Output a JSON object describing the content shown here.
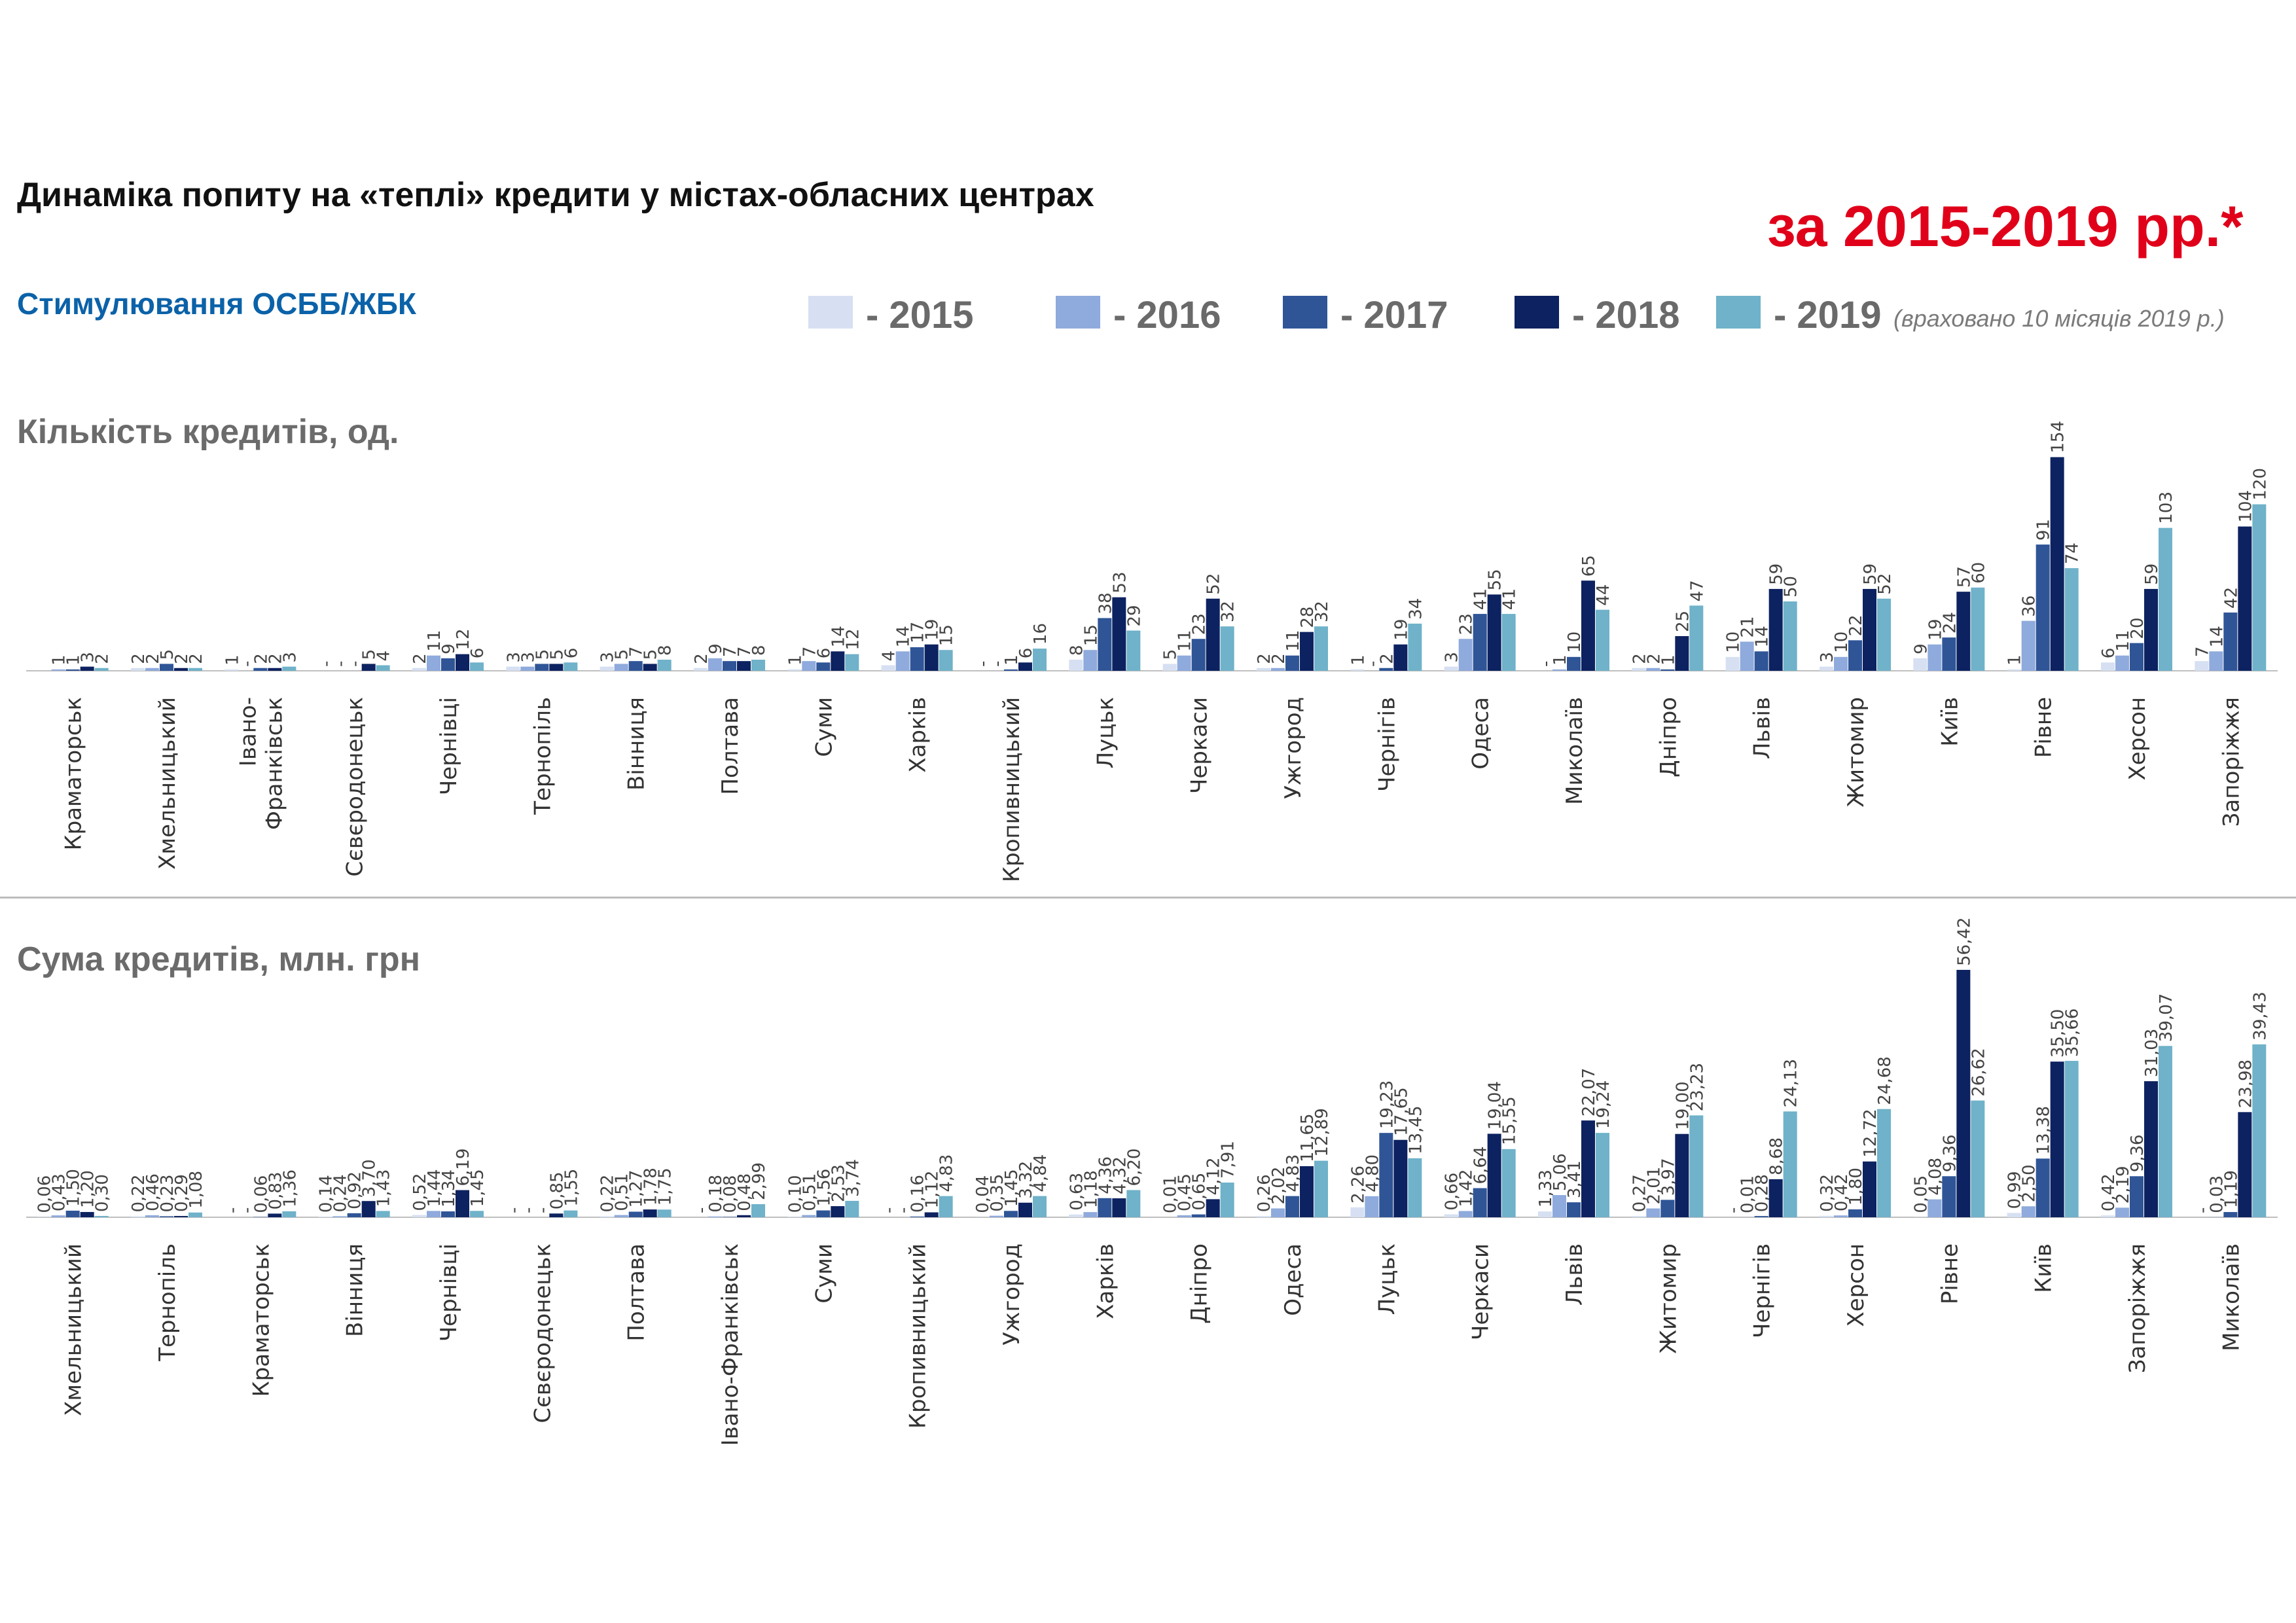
{
  "header": {
    "title": "Динаміка попиту на «теплі» кредити у містах-обласних центрах",
    "period": "за 2015-2019 рр.*",
    "subtitle": "Стимулювання ОСББ/ЖБК"
  },
  "legend": {
    "items": [
      {
        "label": "- 2015",
        "color": "#d6e0f2"
      },
      {
        "label": "- 2016",
        "color": "#8faadc"
      },
      {
        "label": "- 2017",
        "color": "#2f5597"
      },
      {
        "label": "- 2018",
        "color": "#0d2260"
      },
      {
        "label": "- 2019",
        "color": "#6fb2c9"
      }
    ],
    "note": "(враховано 10 місяців 2019 р.)"
  },
  "chart_data": [
    {
      "type": "bar",
      "title": "Кількість кредитів, од.",
      "categories": [
        "Краматорськ",
        "Хмельницький",
        "Івано-\nФранківськ",
        "Сєвєродонецьк",
        "Чернівці",
        "Тернопіль",
        "Вінниця",
        "Полтава",
        "Суми",
        "Харків",
        "Кропивницький",
        "Луцьк",
        "Черкаси",
        "Ужгород",
        "Чернігів",
        "Одеса",
        "Миколаїв",
        "Дніпро",
        "Львів",
        "Житомир",
        "Київ",
        "Рівне",
        "Херсон",
        "Запоріжжя"
      ],
      "series": [
        {
          "name": "2015",
          "values": [
            null,
            2,
            1,
            null,
            2,
            3,
            3,
            2,
            1,
            4,
            null,
            8,
            5,
            2,
            1,
            3,
            null,
            2,
            10,
            3,
            9,
            1,
            6,
            7
          ],
          "labels": [
            "",
            "2",
            "1",
            "-",
            "2",
            "3",
            "3",
            "2",
            "1",
            "4",
            "-",
            "8",
            "5",
            "2",
            "1",
            "3",
            "-",
            "2",
            "10",
            "3",
            "9",
            "1",
            "6",
            "7"
          ]
        },
        {
          "name": "2016",
          "values": [
            1,
            2,
            null,
            null,
            11,
            3,
            5,
            9,
            7,
            14,
            null,
            15,
            11,
            2,
            null,
            23,
            1,
            2,
            21,
            10,
            19,
            36,
            11,
            14
          ],
          "labels": [
            "1",
            "2",
            "-",
            "-",
            "11",
            "3",
            "5",
            "9",
            "7",
            "14",
            "-",
            "15",
            "11",
            "2",
            "-",
            "23",
            "1",
            "2",
            "21",
            "10",
            "19",
            "36",
            "11",
            "14"
          ]
        },
        {
          "name": "2017",
          "values": [
            1,
            5,
            2,
            null,
            9,
            5,
            7,
            7,
            6,
            17,
            1,
            38,
            23,
            11,
            2,
            41,
            10,
            1,
            14,
            22,
            24,
            91,
            20,
            42
          ],
          "labels": [
            "1",
            "5",
            "2",
            "-",
            "9",
            "5",
            "7",
            "7",
            "6",
            "17",
            "1",
            "38",
            "23",
            "11",
            "2",
            "41",
            "10",
            "1",
            "14",
            "22",
            "24",
            "91",
            "20",
            "42"
          ]
        },
        {
          "name": "2018",
          "values": [
            3,
            2,
            2,
            5,
            12,
            5,
            5,
            7,
            14,
            19,
            6,
            53,
            52,
            28,
            19,
            55,
            65,
            25,
            59,
            59,
            57,
            154,
            59,
            104
          ],
          "labels": [
            "3",
            "2",
            "2",
            "5",
            "12",
            "5",
            "5",
            "7",
            "14",
            "19",
            "6",
            "53",
            "52",
            "28",
            "19",
            "55",
            "65",
            "25",
            "59",
            "59",
            "57",
            "154",
            "59",
            "104"
          ]
        },
        {
          "name": "2019",
          "values": [
            2,
            2,
            3,
            4,
            6,
            6,
            8,
            8,
            12,
            15,
            16,
            29,
            32,
            32,
            34,
            41,
            44,
            47,
            50,
            52,
            60,
            74,
            103,
            120
          ],
          "labels": [
            "2",
            "2",
            "3",
            "4",
            "6",
            "6",
            "8",
            "8",
            "12",
            "15",
            "16",
            "29",
            "32",
            "32",
            "34",
            "41",
            "44",
            "47",
            "50",
            "52",
            "60",
            "74",
            "103",
            "120"
          ]
        }
      ]
    },
    {
      "type": "bar",
      "title": "Сума кредитів, млн. грн",
      "categories": [
        "Хмельницький",
        "Тернопіль",
        "Краматорськ",
        "Вінниця",
        "Чернівці",
        "Сєвєродонецьк",
        "Полтава",
        "Івано-Франківськ",
        "Суми",
        "Кропивницький",
        "Ужгород",
        "Харків",
        "Дніпро",
        "Одеса",
        "Луцьк",
        "Черкаси",
        "Львів",
        "Житомир",
        "Чернігів",
        "Херсон",
        "Рівне",
        "Київ",
        "Запоріжжя",
        "Миколаїв"
      ],
      "series": [
        {
          "name": "2015",
          "values": [
            0.06,
            0.22,
            null,
            0.14,
            0.52,
            null,
            0.22,
            null,
            0.1,
            null,
            0.04,
            0.63,
            0.01,
            0.26,
            2.26,
            0.66,
            1.33,
            0.27,
            null,
            0.32,
            0.05,
            0.99,
            0.42,
            null
          ],
          "labels": [
            "0,06",
            "0,22",
            "-",
            "0,14",
            "0,52",
            "-",
            "0,22",
            "-",
            "0,10",
            "-",
            "0,04",
            "0,63",
            "0,01",
            "0,26",
            "2,26",
            "0,66",
            "1,33",
            "0,27",
            "-",
            "0,32",
            "0,05",
            "0,99",
            "0,42",
            "-"
          ]
        },
        {
          "name": "2016",
          "values": [
            0.43,
            0.46,
            null,
            0.24,
            1.44,
            null,
            0.51,
            0.18,
            0.51,
            null,
            0.35,
            1.18,
            0.45,
            2.02,
            4.8,
            1.42,
            5.06,
            2.01,
            0.01,
            0.42,
            4.08,
            2.5,
            2.19,
            0.03
          ],
          "labels": [
            "0,43",
            "0,46",
            "-",
            "0,24",
            "1,44",
            "-",
            "0,51",
            "0,18",
            "0,51",
            "-",
            "0,35",
            "1,18",
            "0,45",
            "2,02",
            "4,80",
            "1,42",
            "5,06",
            "2,01",
            "0,01",
            "0,42",
            "4,08",
            "2,50",
            "2,19",
            "0,03"
          ]
        },
        {
          "name": "2017",
          "values": [
            1.5,
            0.23,
            0.06,
            0.92,
            1.34,
            null,
            1.27,
            0.08,
            1.56,
            0.16,
            1.45,
            4.36,
            0.65,
            4.83,
            19.23,
            6.64,
            3.41,
            3.97,
            0.28,
            1.8,
            9.36,
            13.38,
            9.36,
            1.19
          ],
          "labels": [
            "1,50",
            "0,23",
            "0,06",
            "0,92",
            "1,34",
            "-",
            "1,27",
            "0,08",
            "1,56",
            "0,16",
            "1,45",
            "4,36",
            "0,65",
            "4,83",
            "19,23",
            "6,64",
            "3,41",
            "3,97",
            "0,28",
            "1,80",
            "9,36",
            "13,38",
            "9,36",
            "1,19"
          ]
        },
        {
          "name": "2018",
          "values": [
            1.2,
            0.29,
            0.83,
            3.7,
            6.19,
            0.85,
            1.78,
            0.48,
            2.53,
            1.12,
            3.32,
            4.32,
            4.12,
            11.65,
            17.65,
            19.04,
            22.07,
            19.0,
            8.68,
            12.72,
            56.42,
            35.5,
            31.03,
            23.98
          ],
          "labels": [
            "1,20",
            "0,29",
            "0,83",
            "3,70",
            "6,19",
            "0,85",
            "1,78",
            "0,48",
            "2,53",
            "1,12",
            "3,32",
            "4,32",
            "4,12",
            "11,65",
            "17,65",
            "19,04",
            "22,07",
            "19,00",
            "8,68",
            "12,72",
            "56,42",
            "35,50",
            "31,03",
            "23,98"
          ]
        },
        {
          "name": "2019",
          "values": [
            0.3,
            1.08,
            1.36,
            1.43,
            1.45,
            1.55,
            1.75,
            2.99,
            3.74,
            4.83,
            4.84,
            6.2,
            7.91,
            12.89,
            13.45,
            15.55,
            19.24,
            23.23,
            24.13,
            24.68,
            26.62,
            35.66,
            39.07,
            39.43
          ],
          "labels": [
            "0,30",
            "1,08",
            "1,36",
            "1,43",
            "1,45",
            "1,55",
            "1,75",
            "2,99",
            "3,74",
            "4,83",
            "4,84",
            "6,20",
            "7,91",
            "12,89",
            "13,45",
            "15,55",
            "19,24",
            "23,23",
            "24,13",
            "24,68",
            "26,62",
            "35,66",
            "39,07",
            "39,43"
          ]
        }
      ]
    }
  ]
}
